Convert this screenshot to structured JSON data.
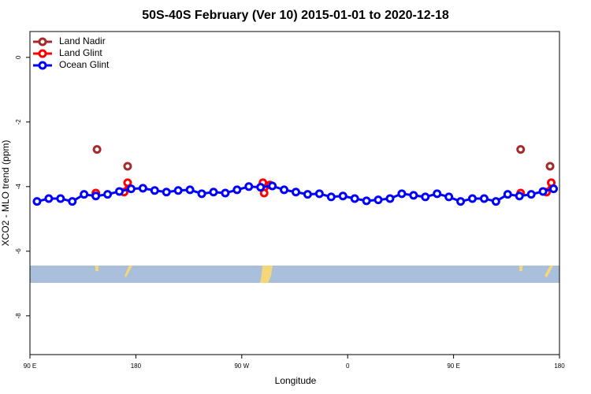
{
  "chart_data": {
    "type": "line",
    "title": "50S-40S February (Ver 10)   2015-01-01 to 2020-12-18",
    "x_label": "Longitude",
    "y_label": "XCO2 - MLO trend (ppm)",
    "xlim": [
      90,
      540
    ],
    "xticks": [
      {
        "value": 90,
        "label": "90 E"
      },
      180,
      {
        "value": 270,
        "label": "90 W"
      },
      {
        "value": 360,
        "label": "0"
      },
      {
        "value": 450,
        "label": "90 E"
      },
      {
        "value": 540,
        "label": "180"
      }
    ],
    "ylim": [
      -9.2,
      0.8
    ],
    "yticks": [
      0,
      -2,
      -4,
      -6,
      -8
    ],
    "legend": "top-left",
    "series": [
      {
        "name": "Land Nadir",
        "color": "#a52a2a",
        "x": [
          147,
          null,
          173,
          null,
          507,
          null,
          532
        ],
        "values": [
          -2.85,
          null,
          -3.37,
          null,
          -2.85,
          null,
          -3.37
        ]
      },
      {
        "name": "Land Glint",
        "color": "#ff0000",
        "x": [
          146,
          null,
          170,
          173,
          null,
          288,
          289,
          294,
          null,
          507,
          null,
          529,
          533
        ],
        "values": [
          -4.2,
          null,
          -4.17,
          -3.88,
          null,
          -3.88,
          -4.2,
          -3.95,
          null,
          -4.2,
          null,
          -4.17,
          -3.88
        ]
      },
      {
        "name": "Ocean Glint",
        "color": "#0000ff",
        "x": [
          96,
          106,
          116,
          126,
          136,
          146,
          156,
          166,
          176,
          186,
          196,
          206,
          216,
          226,
          236,
          246,
          256,
          266,
          276,
          286,
          296,
          306,
          316,
          326,
          336,
          346,
          356,
          366,
          376,
          386,
          396,
          406,
          416,
          426,
          436,
          446,
          456,
          466,
          476,
          486,
          496,
          506,
          516,
          526,
          535
        ],
        "values": [
          -4.46,
          -4.37,
          -4.37,
          -4.46,
          -4.24,
          -4.29,
          -4.24,
          -4.15,
          -4.07,
          -4.05,
          -4.12,
          -4.17,
          -4.12,
          -4.1,
          -4.22,
          -4.17,
          -4.2,
          -4.1,
          -4.0,
          -4.02,
          -3.98,
          -4.1,
          -4.17,
          -4.24,
          -4.22,
          -4.32,
          -4.29,
          -4.37,
          -4.44,
          -4.41,
          -4.37,
          -4.22,
          -4.27,
          -4.32,
          -4.22,
          -4.32,
          -4.46,
          -4.37,
          -4.37,
          -4.46,
          -4.24,
          -4.29,
          -4.24,
          -4.15,
          -4.07
        ]
      }
    ]
  }
}
